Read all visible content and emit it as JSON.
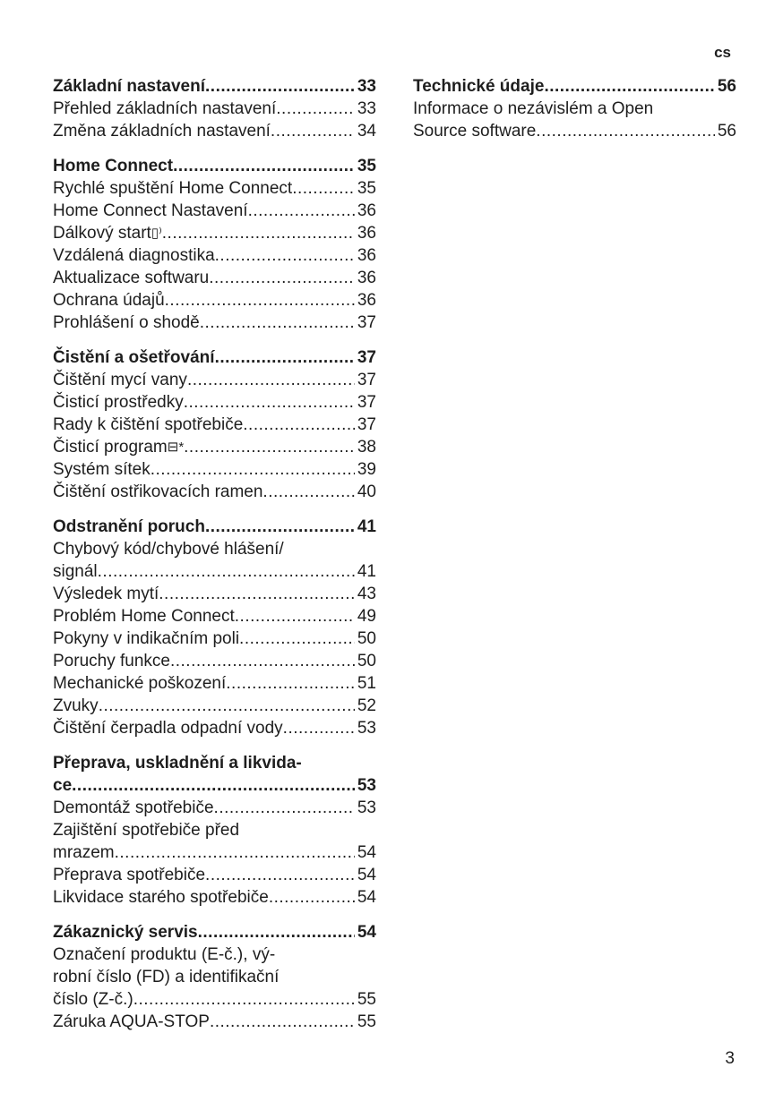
{
  "header": {
    "language": "cs"
  },
  "footer": {
    "page_number": "3"
  },
  "columns": [
    [
      {
        "title": "Základní nastavení",
        "page": "33",
        "items": [
          {
            "lines": [
              "Přehled základních nastavení"
            ],
            "page": "33"
          },
          {
            "lines": [
              "Změna základních nastavení"
            ],
            "page": "34"
          }
        ]
      },
      {
        "title": "Home Connect",
        "page": "35",
        "items": [
          {
            "lines": [
              "Rychlé spuštění Home Connect"
            ],
            "page": "35"
          },
          {
            "lines": [
              "Home Connect Nastavení"
            ],
            "page": "36"
          },
          {
            "lines": [
              "Dálkový start"
            ],
            "icon": "remote-start-icon",
            "glyph": "▯⁾",
            "page": "36"
          },
          {
            "lines": [
              "Vzdálená diagnostika"
            ],
            "page": "36"
          },
          {
            "lines": [
              "Aktualizace softwaru"
            ],
            "page": "36"
          },
          {
            "lines": [
              "Ochrana údajů"
            ],
            "page": "36"
          },
          {
            "lines": [
              "Prohlášení o shodě"
            ],
            "page": "37"
          }
        ]
      },
      {
        "title": "Čistění a ošetřování",
        "page": "37",
        "items": [
          {
            "lines": [
              "Čištění mycí vany"
            ],
            "page": "37"
          },
          {
            "lines": [
              "Čisticí prostředky"
            ],
            "page": "37"
          },
          {
            "lines": [
              "Rady k čištění spotřebiče"
            ],
            "page": "37"
          },
          {
            "lines": [
              "Čisticí program"
            ],
            "icon": "machine-care-icon",
            "glyph": "⊟*",
            "page": "38"
          },
          {
            "lines": [
              "Systém sítek"
            ],
            "page": "39"
          },
          {
            "lines": [
              "Čištění ostřikovacích ramen"
            ],
            "page": "40"
          }
        ]
      },
      {
        "title": "Odstranění poruch",
        "page": "41",
        "items": [
          {
            "lines": [
              "Chybový kód/chybové hlášení/",
              "signál"
            ],
            "page": "41"
          },
          {
            "lines": [
              "Výsledek mytí"
            ],
            "page": "43"
          },
          {
            "lines": [
              "Problém Home Connect"
            ],
            "page": "49"
          },
          {
            "lines": [
              "Pokyny v indikačním poli"
            ],
            "page": "50"
          },
          {
            "lines": [
              "Poruchy funkce"
            ],
            "page": "50"
          },
          {
            "lines": [
              "Mechanické poškození"
            ],
            "page": "51"
          },
          {
            "lines": [
              "Zvuky"
            ],
            "page": "52"
          },
          {
            "lines": [
              "Čištění čerpadla odpadní vody"
            ],
            "page": "53"
          }
        ]
      },
      {
        "title_lines": [
          "Přeprava, uskladnění a likvida-",
          "ce"
        ],
        "page": "53",
        "items": [
          {
            "lines": [
              "Demontáž spotřebiče"
            ],
            "page": "53"
          },
          {
            "lines": [
              "Zajištění spotřebiče před",
              "mrazem"
            ],
            "page": "54"
          },
          {
            "lines": [
              "Přeprava spotřebiče"
            ],
            "page": "54"
          },
          {
            "lines": [
              "Likvidace starého spotřebiče"
            ],
            "page": "54"
          }
        ]
      },
      {
        "title": "Zákaznický servis",
        "page": "54",
        "items": [
          {
            "lines": [
              "Označení produktu (E-č.), vý-",
              "robní číslo (FD) a identifikační",
              "číslo (Z-č.)"
            ],
            "page": "55"
          },
          {
            "lines": [
              "Záruka AQUA-STOP"
            ],
            "page": "55"
          }
        ]
      }
    ],
    [
      {
        "title": "Technické údaje",
        "page": "56",
        "items": [
          {
            "lines": [
              "Informace o nezávislém a Open",
              "Source software"
            ],
            "page": "56"
          }
        ]
      }
    ]
  ]
}
